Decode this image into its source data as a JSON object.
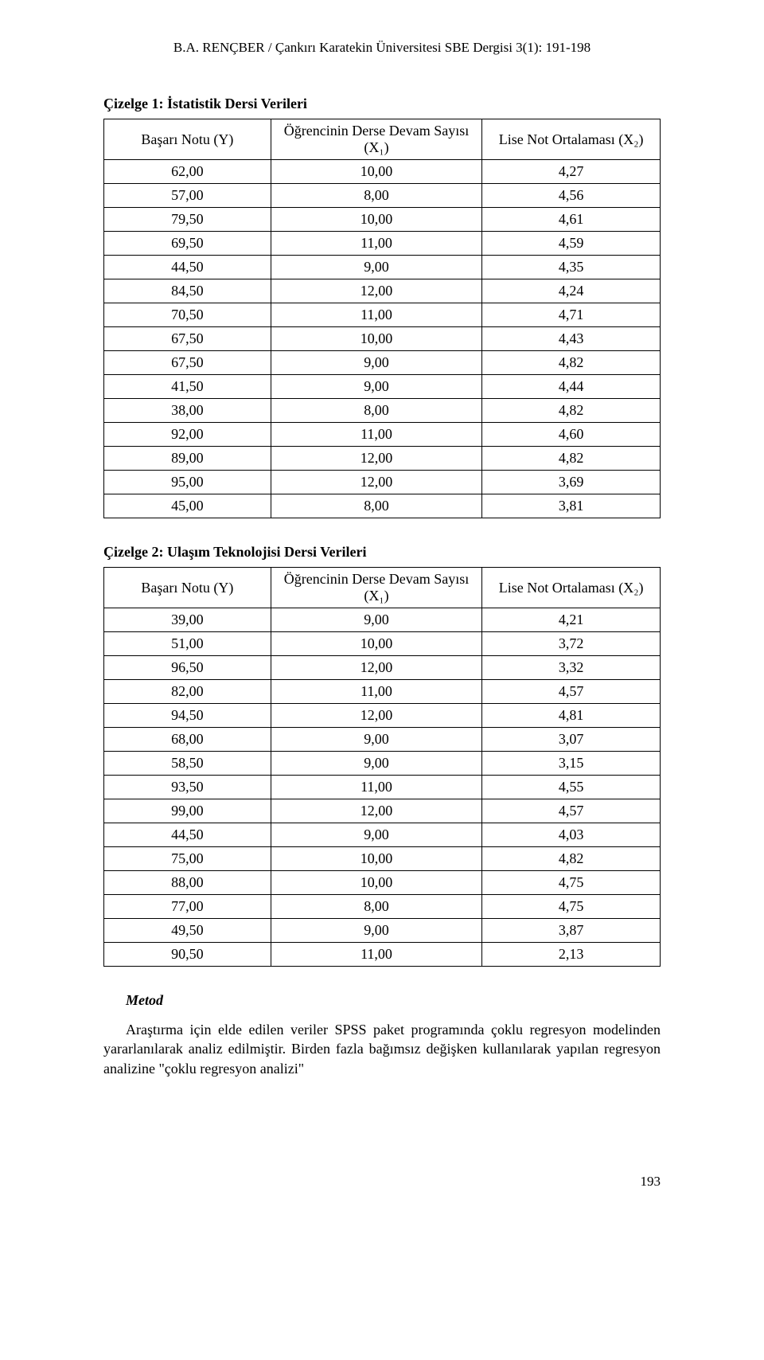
{
  "header": "B.A. RENÇBER / Çankırı Karatekin Üniversitesi SBE Dergisi 3(1): 191-198",
  "table1": {
    "caption": "Çizelge 1: İstatistik Dersi Verileri",
    "columns": [
      "Başarı Notu (Y)",
      "Öğrencinin Derse Devam Sayısı (X₁)",
      "Lise Not Ortalaması (X₂)"
    ],
    "rows": [
      [
        "62,00",
        "10,00",
        "4,27"
      ],
      [
        "57,00",
        "8,00",
        "4,56"
      ],
      [
        "79,50",
        "10,00",
        "4,61"
      ],
      [
        "69,50",
        "11,00",
        "4,59"
      ],
      [
        "44,50",
        "9,00",
        "4,35"
      ],
      [
        "84,50",
        "12,00",
        "4,24"
      ],
      [
        "70,50",
        "11,00",
        "4,71"
      ],
      [
        "67,50",
        "10,00",
        "4,43"
      ],
      [
        "67,50",
        "9,00",
        "4,82"
      ],
      [
        "41,50",
        "9,00",
        "4,44"
      ],
      [
        "38,00",
        "8,00",
        "4,82"
      ],
      [
        "92,00",
        "11,00",
        "4,60"
      ],
      [
        "89,00",
        "12,00",
        "4,82"
      ],
      [
        "95,00",
        "12,00",
        "3,69"
      ],
      [
        "45,00",
        "8,00",
        "3,81"
      ]
    ]
  },
  "table2": {
    "caption": "Çizelge 2: Ulaşım Teknolojisi Dersi Verileri",
    "columns": [
      "Başarı Notu (Y)",
      "Öğrencinin Derse Devam Sayısı (X₁)",
      "Lise Not Ortalaması (X₂)"
    ],
    "rows": [
      [
        "39,00",
        "9,00",
        "4,21"
      ],
      [
        "51,00",
        "10,00",
        "3,72"
      ],
      [
        "96,50",
        "12,00",
        "3,32"
      ],
      [
        "82,00",
        "11,00",
        "4,57"
      ],
      [
        "94,50",
        "12,00",
        "4,81"
      ],
      [
        "68,00",
        "9,00",
        "3,07"
      ],
      [
        "58,50",
        "9,00",
        "3,15"
      ],
      [
        "93,50",
        "11,00",
        "4,55"
      ],
      [
        "99,00",
        "12,00",
        "4,57"
      ],
      [
        "44,50",
        "9,00",
        "4,03"
      ],
      [
        "75,00",
        "10,00",
        "4,82"
      ],
      [
        "88,00",
        "10,00",
        "4,75"
      ],
      [
        "77,00",
        "8,00",
        "4,75"
      ],
      [
        "49,50",
        "9,00",
        "3,87"
      ],
      [
        "90,50",
        "11,00",
        "2,13"
      ]
    ]
  },
  "method": {
    "title": "Metod",
    "paragraph": "Araştırma için elde edilen veriler SPSS paket programında çoklu regresyon modelinden yararlanılarak analiz edilmiştir. Birden fazla bağımsız değişken kullanılarak yapılan regresyon analizine \"çoklu regresyon analizi\""
  },
  "page_number": "193"
}
